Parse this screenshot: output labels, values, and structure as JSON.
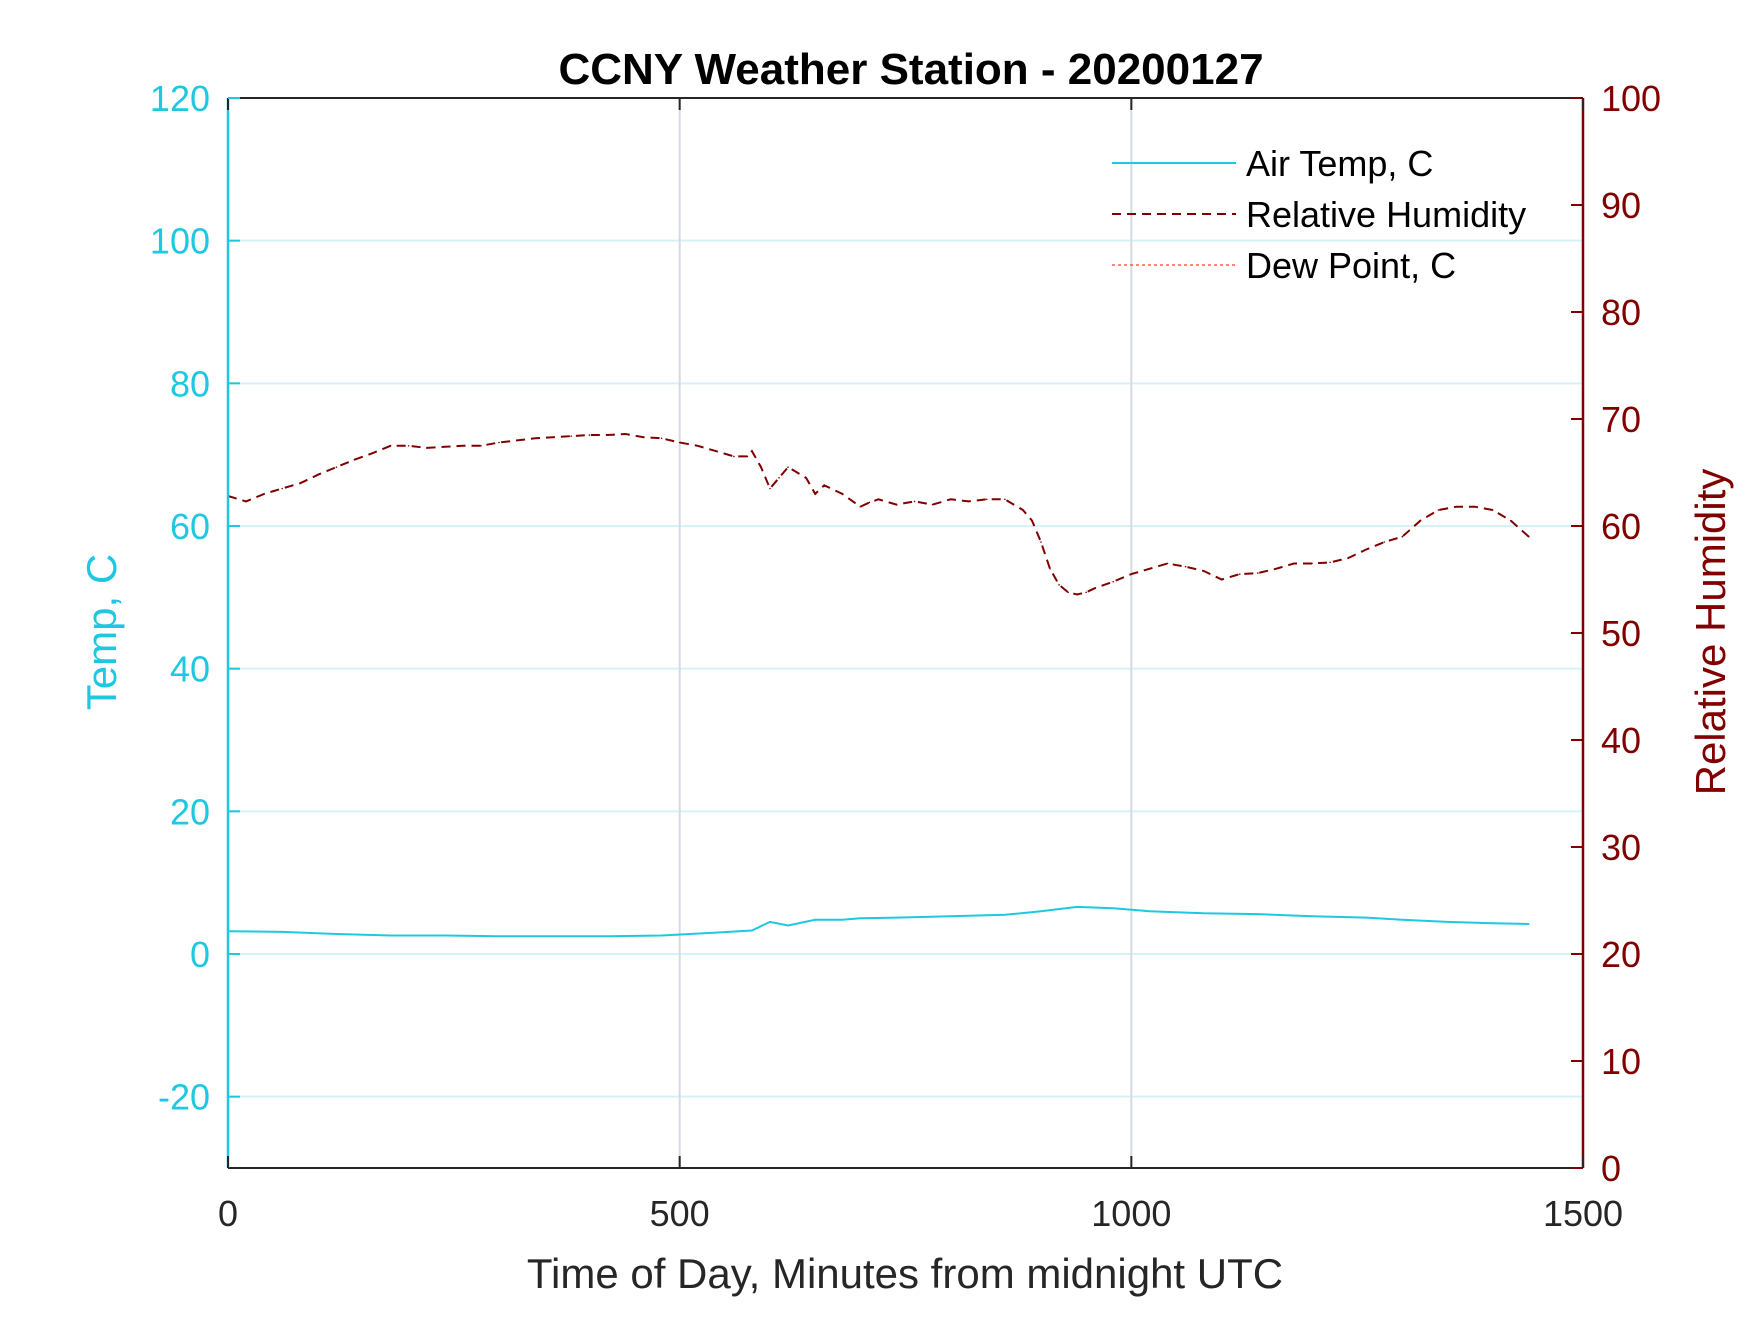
{
  "chart_data": {
    "type": "line",
    "title": "CCNY Weather Station - 20200127",
    "xlabel": "Time of Day, Minutes from midnight UTC",
    "ylabel_left": "Temp, C",
    "ylabel_right": "Relative Humidity",
    "xlim": [
      0,
      1500
    ],
    "ylim_left": [
      -30,
      120
    ],
    "ylim_right": [
      0,
      100
    ],
    "xticks": [
      0,
      500,
      1000,
      1500
    ],
    "xtick_labels": [
      "0",
      "500",
      "1000",
      "1500"
    ],
    "yticks_left": [
      -20,
      0,
      20,
      40,
      60,
      80,
      100,
      120
    ],
    "ytick_labels_left": [
      "-20",
      "0",
      "20",
      "40",
      "60",
      "80",
      "100",
      "120"
    ],
    "yticks_right": [
      0,
      10,
      20,
      30,
      40,
      50,
      60,
      70,
      80,
      90,
      100
    ],
    "ytick_labels_right": [
      "0",
      "10",
      "20",
      "30",
      "40",
      "50",
      "60",
      "70",
      "80",
      "90",
      "100"
    ],
    "grid": true,
    "legend_position": "top-right",
    "colors": {
      "left_axis": "#1fc8e0",
      "right_axis": "#800000",
      "dew": "#ff6040",
      "grid": "#d6f2f8",
      "vgrid": "#d5dbe3"
    },
    "series": [
      {
        "name": "Air Temp, C",
        "axis": "left",
        "style": "solid",
        "color": "#1fc8e0",
        "x": [
          0,
          60,
          120,
          180,
          240,
          300,
          360,
          420,
          480,
          540,
          580,
          600,
          620,
          650,
          680,
          700,
          740,
          800,
          860,
          900,
          940,
          980,
          1020,
          1080,
          1140,
          1200,
          1260,
          1300,
          1350,
          1400,
          1440
        ],
        "values": [
          3.2,
          3.1,
          2.8,
          2.6,
          2.6,
          2.5,
          2.5,
          2.5,
          2.6,
          3.0,
          3.3,
          4.5,
          4.0,
          4.8,
          4.8,
          5.0,
          5.1,
          5.3,
          5.5,
          6.0,
          6.6,
          6.4,
          6.0,
          5.7,
          5.6,
          5.3,
          5.1,
          4.8,
          4.5,
          4.3,
          4.2
        ]
      },
      {
        "name": "Relative Humidity",
        "axis": "right",
        "style": "dashed",
        "color": "#800000",
        "x": [
          0,
          20,
          40,
          60,
          80,
          100,
          120,
          140,
          160,
          180,
          200,
          220,
          240,
          260,
          280,
          300,
          320,
          340,
          360,
          380,
          400,
          420,
          440,
          460,
          480,
          500,
          520,
          540,
          560,
          575,
          580,
          590,
          600,
          610,
          620,
          640,
          650,
          660,
          680,
          700,
          710,
          720,
          740,
          760,
          780,
          800,
          820,
          840,
          860,
          880,
          890,
          900,
          910,
          920,
          930,
          940,
          950,
          960,
          980,
          1000,
          1020,
          1040,
          1060,
          1080,
          1100,
          1120,
          1140,
          1160,
          1180,
          1200,
          1220,
          1240,
          1260,
          1280,
          1300,
          1320,
          1340,
          1360,
          1380,
          1400,
          1420,
          1440
        ],
        "values": [
          62.8,
          62.3,
          63.0,
          63.5,
          64.0,
          64.8,
          65.5,
          66.2,
          66.8,
          67.5,
          67.5,
          67.3,
          67.4,
          67.5,
          67.5,
          67.8,
          68.0,
          68.2,
          68.3,
          68.4,
          68.5,
          68.5,
          68.6,
          68.3,
          68.2,
          67.8,
          67.5,
          67.0,
          66.5,
          66.5,
          67.0,
          65.5,
          63.5,
          64.5,
          65.5,
          64.5,
          63.0,
          63.8,
          63.0,
          61.8,
          62.2,
          62.5,
          62.0,
          62.3,
          62.0,
          62.5,
          62.3,
          62.5,
          62.5,
          61.5,
          60.5,
          58.5,
          56.0,
          54.5,
          53.8,
          53.6,
          53.8,
          54.2,
          54.8,
          55.5,
          56.0,
          56.5,
          56.2,
          55.8,
          55.0,
          55.5,
          55.6,
          56.0,
          56.5,
          56.5,
          56.6,
          57.0,
          57.8,
          58.5,
          59.0,
          60.5,
          61.5,
          61.8,
          61.8,
          61.5,
          60.5,
          59.0
        ]
      },
      {
        "name": "Dew Point, C",
        "axis": "left",
        "style": "dotted",
        "color": "#ff6040",
        "x": [],
        "values": []
      }
    ]
  }
}
